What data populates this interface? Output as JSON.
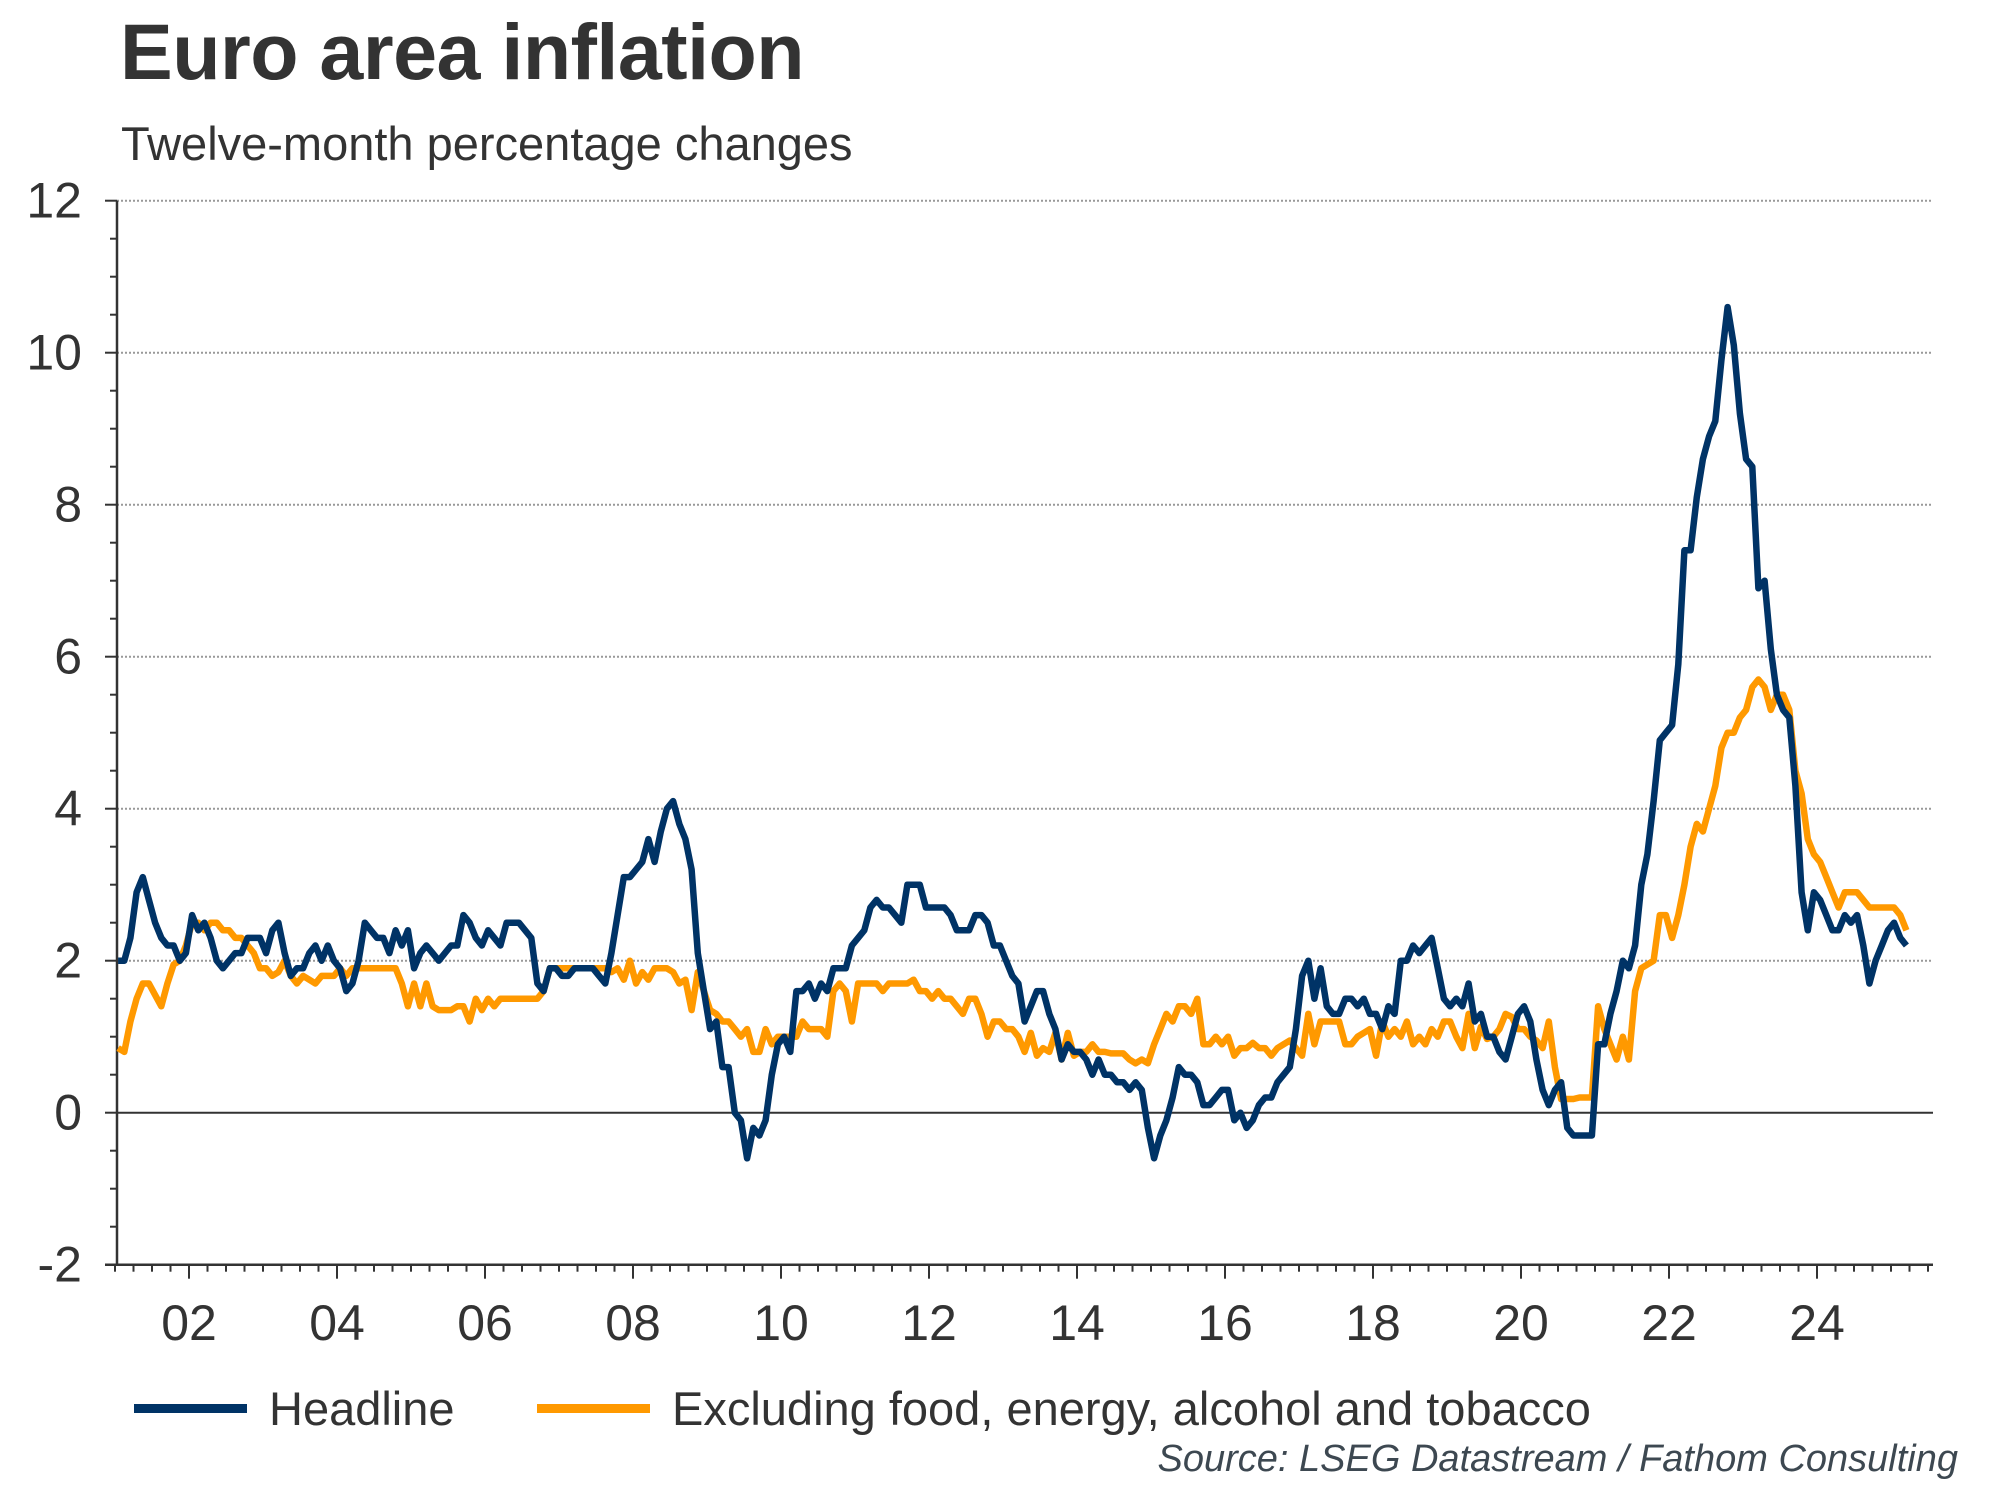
{
  "title": "Euro area inflation",
  "subtitle": "Twelve-month percentage changes",
  "source": "Source: LSEG Datastream / Fathom Consulting",
  "colors": {
    "headline": "#003366",
    "core": "#ff9900",
    "axis": "#333333",
    "grid": "#999999"
  },
  "chart_data": {
    "type": "line",
    "title": "Euro area inflation",
    "subtitle": "Twelve-month percentage changes",
    "xlabel": "",
    "ylabel": "",
    "frequency": "monthly",
    "start": "2001-01",
    "end": "2025-03",
    "xlim": [
      2001,
      2025.6
    ],
    "ylim": [
      -2,
      12
    ],
    "y_ticks": [
      "-2",
      "0",
      "2",
      "4",
      "6",
      "8",
      "10",
      "12"
    ],
    "y_tick_values": [
      -2,
      0,
      2,
      4,
      6,
      8,
      10,
      12
    ],
    "x_ticks": [
      "02",
      "04",
      "06",
      "08",
      "10",
      "12",
      "14",
      "16",
      "18",
      "20",
      "22",
      "24"
    ],
    "x_tick_years": [
      2002,
      2004,
      2006,
      2008,
      2010,
      2012,
      2014,
      2016,
      2018,
      2020,
      2022,
      2024
    ],
    "grid": "horizontal dotted",
    "legend_position": "bottom",
    "series": [
      {
        "name": "Headline",
        "color": "#003366",
        "values": [
          2.0,
          2.0,
          2.3,
          2.9,
          3.1,
          2.8,
          2.5,
          2.3,
          2.2,
          2.2,
          2.0,
          2.1,
          2.6,
          2.4,
          2.5,
          2.3,
          2.0,
          1.9,
          2.0,
          2.1,
          2.1,
          2.3,
          2.3,
          2.3,
          2.1,
          2.4,
          2.5,
          2.1,
          1.8,
          1.9,
          1.9,
          2.1,
          2.2,
          2.0,
          2.2,
          2.0,
          1.9,
          1.6,
          1.7,
          2.0,
          2.5,
          2.4,
          2.3,
          2.3,
          2.1,
          2.4,
          2.2,
          2.4,
          1.9,
          2.1,
          2.2,
          2.1,
          2.0,
          2.1,
          2.2,
          2.2,
          2.6,
          2.5,
          2.3,
          2.2,
          2.4,
          2.3,
          2.2,
          2.5,
          2.5,
          2.5,
          2.4,
          2.3,
          1.7,
          1.6,
          1.9,
          1.9,
          1.8,
          1.8,
          1.9,
          1.9,
          1.9,
          1.9,
          1.8,
          1.7,
          2.1,
          2.6,
          3.1,
          3.1,
          3.2,
          3.3,
          3.6,
          3.3,
          3.7,
          4.0,
          4.1,
          3.8,
          3.6,
          3.2,
          2.1,
          1.6,
          1.1,
          1.2,
          0.6,
          0.6,
          0.0,
          -0.1,
          -0.6,
          -0.2,
          -0.3,
          -0.1,
          0.5,
          0.9,
          1.0,
          0.8,
          1.6,
          1.6,
          1.7,
          1.5,
          1.7,
          1.6,
          1.9,
          1.9,
          1.9,
          2.2,
          2.3,
          2.4,
          2.7,
          2.8,
          2.7,
          2.7,
          2.6,
          2.5,
          3.0,
          3.0,
          3.0,
          2.7,
          2.7,
          2.7,
          2.7,
          2.6,
          2.4,
          2.4,
          2.4,
          2.6,
          2.6,
          2.5,
          2.2,
          2.2,
          2.0,
          1.8,
          1.7,
          1.2,
          1.4,
          1.6,
          1.6,
          1.3,
          1.1,
          0.7,
          0.9,
          0.8,
          0.8,
          0.7,
          0.5,
          0.7,
          0.5,
          0.5,
          0.4,
          0.4,
          0.3,
          0.4,
          0.3,
          -0.2,
          -0.6,
          -0.3,
          -0.1,
          0.2,
          0.6,
          0.5,
          0.5,
          0.4,
          0.1,
          0.1,
          0.2,
          0.3,
          0.3,
          -0.1,
          0.0,
          -0.2,
          -0.1,
          0.1,
          0.2,
          0.2,
          0.4,
          0.5,
          0.6,
          1.1,
          1.8,
          2.0,
          1.5,
          1.9,
          1.4,
          1.3,
          1.3,
          1.5,
          1.5,
          1.4,
          1.5,
          1.3,
          1.3,
          1.1,
          1.4,
          1.3,
          2.0,
          2.0,
          2.2,
          2.1,
          2.2,
          2.3,
          1.9,
          1.5,
          1.4,
          1.5,
          1.4,
          1.7,
          1.2,
          1.3,
          1.0,
          1.0,
          0.8,
          0.7,
          1.0,
          1.3,
          1.4,
          1.2,
          0.7,
          0.3,
          0.1,
          0.3,
          0.4,
          -0.2,
          -0.3,
          -0.3,
          -0.3,
          -0.3,
          0.9,
          0.9,
          1.3,
          1.6,
          2.0,
          1.9,
          2.2,
          3.0,
          3.4,
          4.1,
          4.9,
          5.0,
          5.1,
          5.9,
          7.4,
          7.4,
          8.1,
          8.6,
          8.9,
          9.1,
          9.9,
          10.6,
          10.1,
          9.2,
          8.6,
          8.5,
          6.9,
          7.0,
          6.1,
          5.5,
          5.3,
          5.2,
          4.3,
          2.9,
          2.4,
          2.9,
          2.8,
          2.6,
          2.4,
          2.4,
          2.6,
          2.5,
          2.6,
          2.2,
          1.7,
          2.0,
          2.2,
          2.4,
          2.5,
          2.3,
          2.2
        ]
      },
      {
        "name": "Excluding food, energy, alcohol and tobacco",
        "color": "#ff9900",
        "values": [
          0.85,
          0.8,
          1.2,
          1.5,
          1.7,
          1.7,
          1.55,
          1.4,
          1.7,
          1.95,
          2.0,
          2.2,
          2.5,
          2.5,
          2.4,
          2.5,
          2.5,
          2.4,
          2.4,
          2.3,
          2.3,
          2.2,
          2.1,
          1.9,
          1.9,
          1.8,
          1.85,
          2.0,
          1.8,
          1.7,
          1.8,
          1.75,
          1.7,
          1.8,
          1.8,
          1.8,
          1.9,
          1.8,
          1.9,
          1.9,
          1.9,
          1.9,
          1.9,
          1.9,
          1.9,
          1.9,
          1.7,
          1.4,
          1.7,
          1.4,
          1.7,
          1.4,
          1.35,
          1.35,
          1.35,
          1.4,
          1.4,
          1.2,
          1.5,
          1.35,
          1.5,
          1.4,
          1.5,
          1.5,
          1.5,
          1.5,
          1.5,
          1.5,
          1.5,
          1.6,
          1.9,
          1.9,
          1.9,
          1.9,
          1.9,
          1.9,
          1.9,
          1.9,
          1.9,
          1.9,
          1.85,
          1.9,
          1.75,
          2.0,
          1.7,
          1.85,
          1.75,
          1.9,
          1.9,
          1.9,
          1.85,
          1.7,
          1.75,
          1.35,
          1.85,
          1.6,
          1.35,
          1.3,
          1.2,
          1.2,
          1.1,
          1.0,
          1.1,
          0.8,
          0.8,
          1.1,
          0.9,
          1.0,
          1.0,
          1.0,
          1.0,
          1.2,
          1.1,
          1.1,
          1.1,
          1.0,
          1.6,
          1.7,
          1.6,
          1.2,
          1.7,
          1.7,
          1.7,
          1.7,
          1.6,
          1.7,
          1.7,
          1.7,
          1.7,
          1.75,
          1.6,
          1.6,
          1.5,
          1.6,
          1.5,
          1.5,
          1.4,
          1.3,
          1.5,
          1.5,
          1.3,
          1.0,
          1.2,
          1.2,
          1.1,
          1.1,
          1.0,
          0.8,
          1.05,
          0.75,
          0.85,
          0.8,
          1.05,
          0.7,
          1.05,
          0.75,
          0.8,
          0.8,
          0.9,
          0.8,
          0.8,
          0.78,
          0.78,
          0.78,
          0.7,
          0.65,
          0.7,
          0.65,
          0.9,
          1.1,
          1.3,
          1.2,
          1.4,
          1.4,
          1.3,
          1.5,
          0.9,
          0.9,
          1.0,
          0.9,
          1.0,
          0.75,
          0.85,
          0.85,
          0.92,
          0.85,
          0.85,
          0.75,
          0.85,
          0.9,
          0.95,
          0.85,
          0.75,
          1.3,
          0.9,
          1.2,
          1.2,
          1.2,
          1.2,
          0.9,
          0.9,
          1.0,
          1.05,
          1.1,
          0.75,
          1.2,
          1.0,
          1.1,
          1.0,
          1.2,
          0.9,
          1.0,
          0.9,
          1.1,
          1.0,
          1.2,
          1.2,
          1.0,
          0.85,
          1.3,
          0.85,
          1.13,
          0.97,
          1.0,
          1.1,
          1.3,
          1.26,
          1.1,
          1.1,
          1.0,
          0.95,
          0.85,
          1.2,
          0.6,
          0.18,
          0.18,
          0.18,
          0.2,
          0.2,
          0.2,
          1.4,
          1.1,
          0.9,
          0.7,
          1.0,
          0.7,
          1.6,
          1.9,
          1.95,
          2.0,
          2.6,
          2.6,
          2.3,
          2.6,
          3.0,
          3.5,
          3.8,
          3.7,
          4.0,
          4.3,
          4.8,
          5.0,
          5.0,
          5.2,
          5.3,
          5.6,
          5.7,
          5.6,
          5.3,
          5.5,
          5.5,
          5.3,
          4.5,
          4.2,
          3.6,
          3.4,
          3.3,
          3.1,
          2.9,
          2.7,
          2.9,
          2.9,
          2.9,
          2.8,
          2.7,
          2.7,
          2.7,
          2.7,
          2.7,
          2.6,
          2.4
        ]
      }
    ]
  },
  "legend": [
    {
      "label": "Headline",
      "color": "#003366"
    },
    {
      "label": "Excluding food, energy, alcohol and tobacco",
      "color": "#ff9900"
    }
  ]
}
